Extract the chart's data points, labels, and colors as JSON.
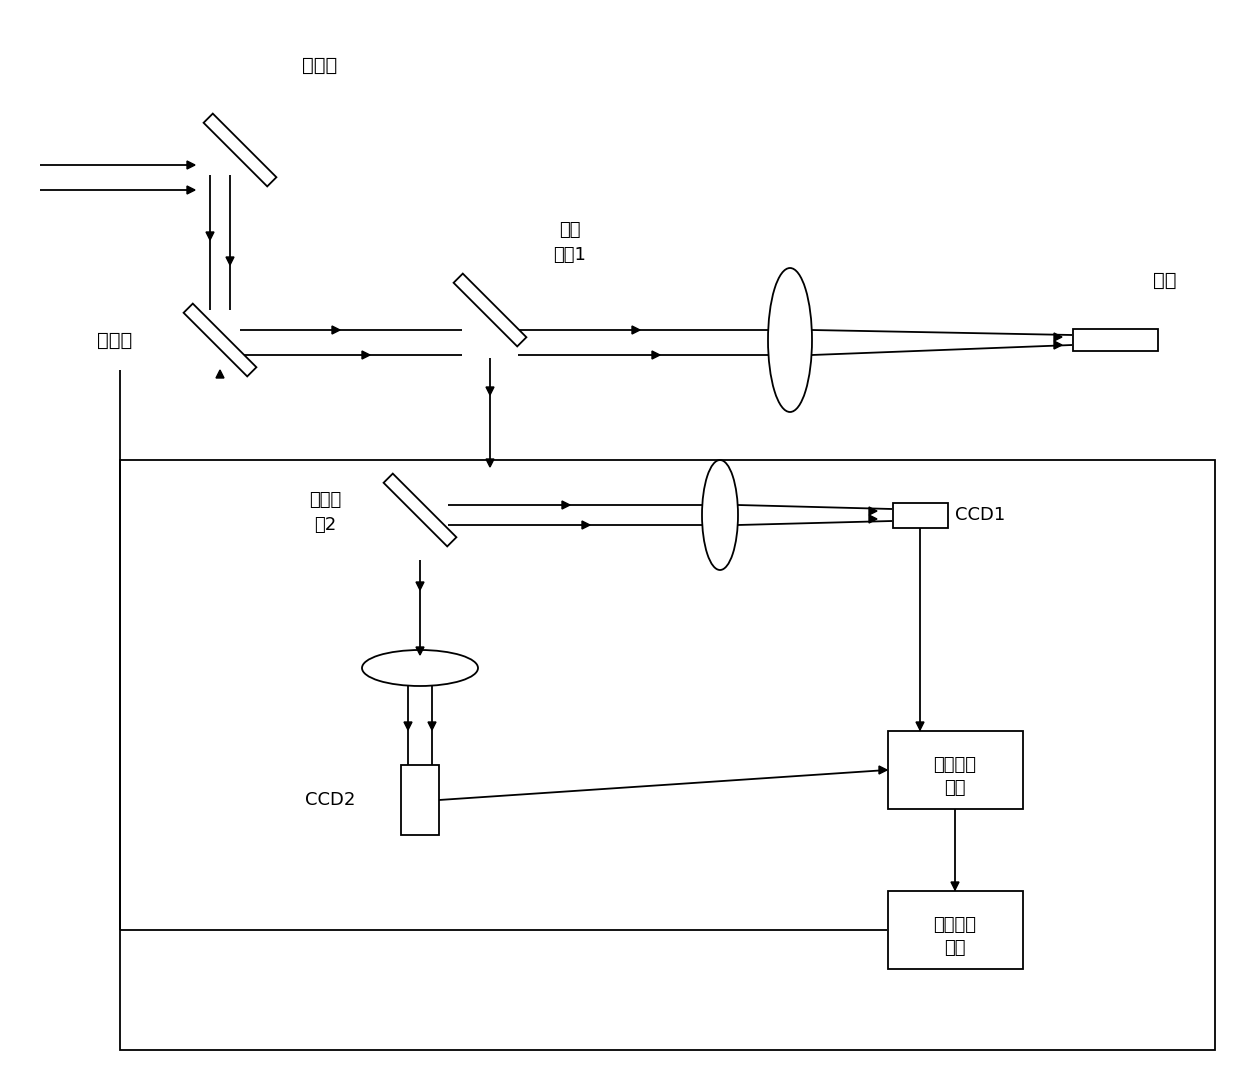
{
  "bg_color": "#ffffff",
  "line_color": "#000000",
  "text_color": "#000000",
  "font_size": 13,
  "labels": {
    "fast_mirror": "快反镜",
    "bs1_line1": "分光",
    "bs1_line2": "棱镜1",
    "bs2_line1": "分光棱",
    "bs2_line2": "镜2",
    "deform_mirror": "变形镜",
    "fiber": "光纤",
    "ccd1": "CCD1",
    "ccd2": "CCD2",
    "img_proc_line1": "图像处理",
    "img_proc_line2": "模块",
    "neural_line1": "神经网络",
    "neural_line2": "模块"
  }
}
